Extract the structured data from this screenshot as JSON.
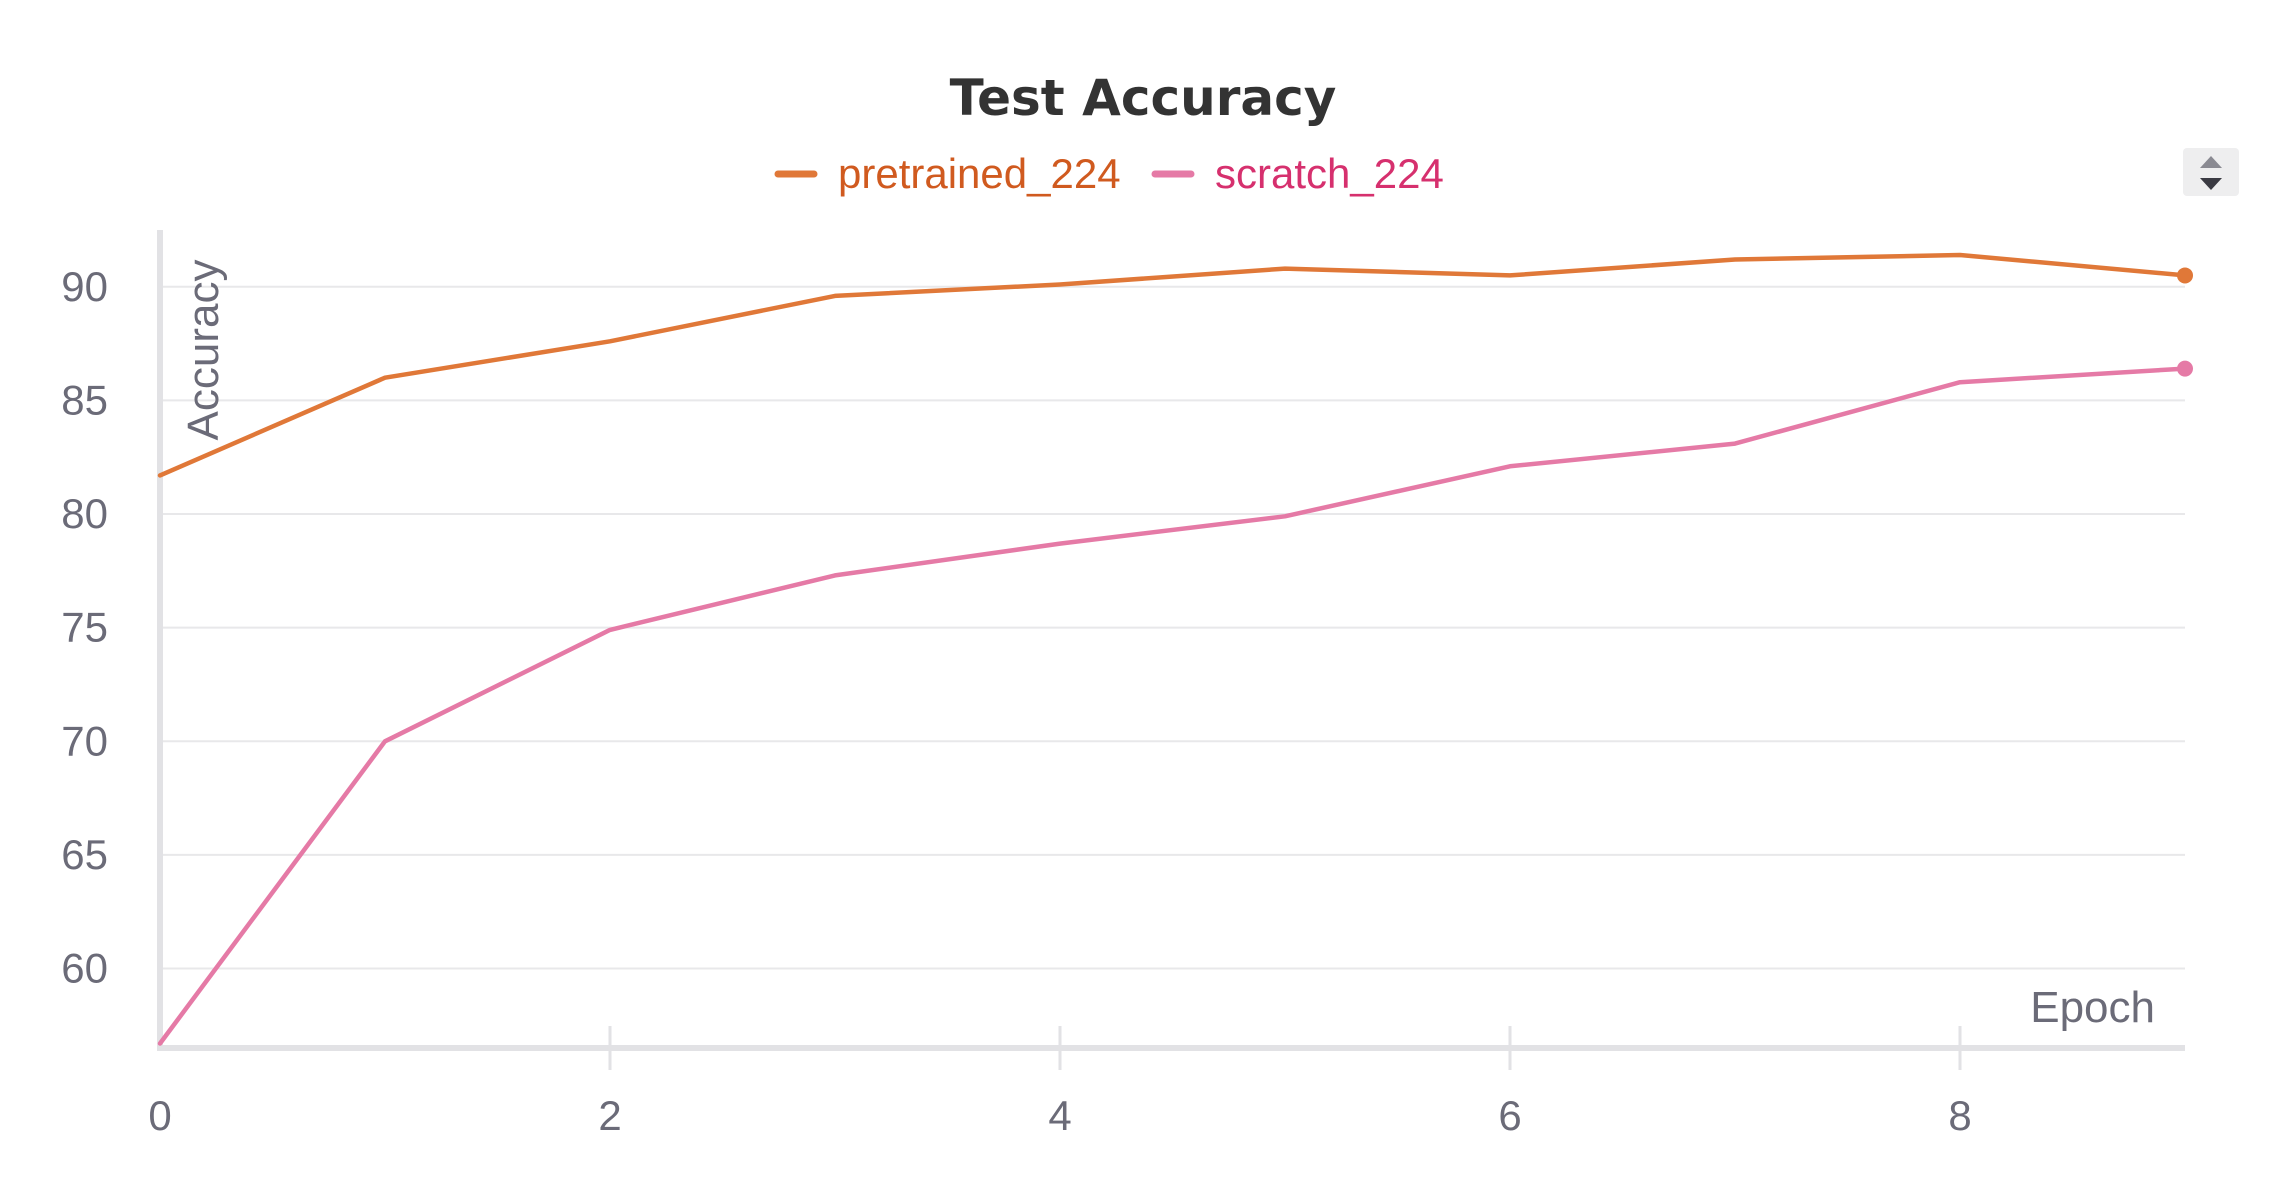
{
  "chart_data": {
    "type": "line",
    "title": "Test Accuracy",
    "xlabel": "Epoch",
    "ylabel": "Accuracy",
    "xlim": [
      0,
      9
    ],
    "ylim": [
      56.5,
      92.5
    ],
    "x_ticks": [
      0,
      2,
      4,
      6,
      8
    ],
    "y_ticks": [
      60,
      65,
      70,
      75,
      80,
      85,
      90
    ],
    "grid": true,
    "legend_position": "top-center",
    "x": [
      0,
      1,
      2,
      3,
      4,
      5,
      6,
      7,
      8,
      9
    ],
    "series": [
      {
        "name": "pretrained_224",
        "color": "#e07838",
        "label_color": "#d05a1f",
        "values": [
          81.7,
          86.0,
          87.6,
          89.6,
          90.1,
          90.8,
          90.5,
          91.2,
          91.4,
          90.5
        ]
      },
      {
        "name": "scratch_224",
        "color": "#e57aa6",
        "label_color": "#d6306e",
        "values": [
          56.7,
          70.0,
          74.9,
          77.3,
          78.7,
          79.9,
          82.1,
          83.1,
          85.8,
          86.4
        ]
      }
    ]
  },
  "controls": {
    "sort_icon": "sort-up-down-icon"
  }
}
